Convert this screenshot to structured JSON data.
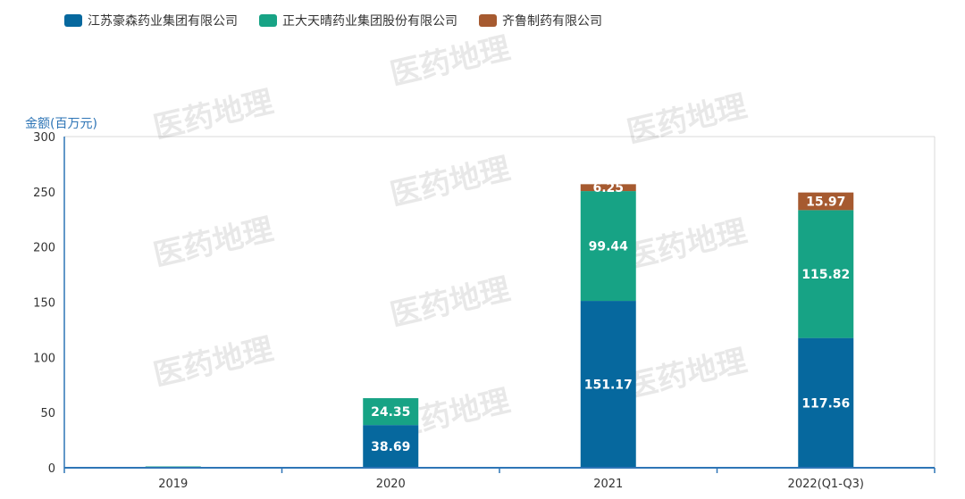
{
  "watermark": "医药地理",
  "chart_data": {
    "type": "bar",
    "stacked": true,
    "categories": [
      "2019",
      "2020",
      "2021",
      "2022(Q1-Q3)"
    ],
    "ylabel": "金额(百万元)",
    "ylim": [
      0,
      300
    ],
    "yticks": [
      0,
      50,
      100,
      150,
      200,
      250,
      300
    ],
    "legend_position": "top-left",
    "grid": false,
    "series": [
      {
        "name": "江苏豪森药业集团有限公司",
        "color": "#06689e",
        "values": [
          0,
          38.69,
          151.17,
          117.56
        ],
        "labels": [
          "",
          "38.69",
          "151.17",
          "117.56"
        ]
      },
      {
        "name": "正大天晴药业集团股份有限公司",
        "color": "#17a385",
        "values": [
          1.2,
          24.35,
          99.44,
          115.82
        ],
        "labels": [
          "",
          "24.35",
          "99.44",
          "115.82"
        ]
      },
      {
        "name": "齐鲁制药有限公司",
        "color": "#a65a30",
        "values": [
          0,
          0,
          6.25,
          15.97
        ],
        "labels": [
          "",
          "",
          "6.25",
          "15.97"
        ]
      }
    ]
  }
}
